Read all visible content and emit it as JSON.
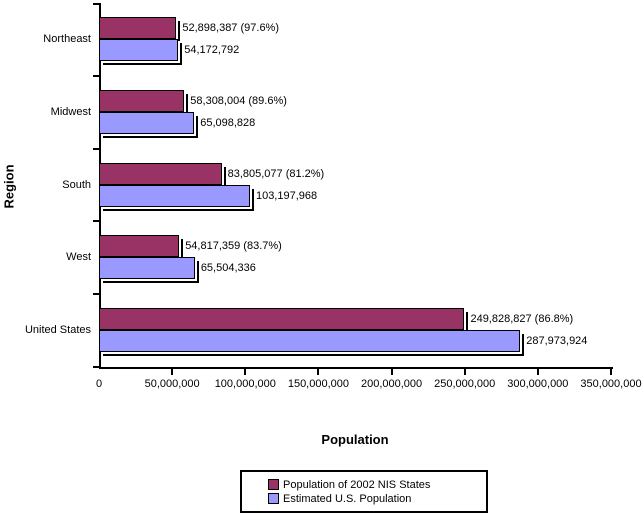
{
  "chart_data": {
    "type": "bar",
    "orientation": "horizontal",
    "title": "",
    "xlabel": "Population",
    "ylabel": "Region",
    "xlim": [
      0,
      350000000
    ],
    "grid": false,
    "legend_position": "bottom",
    "categories": [
      "Northeast",
      "Midwest",
      "South",
      "West",
      "United States"
    ],
    "x_ticks": [
      "0",
      "50,000,000",
      "100,000,000",
      "150,000,000",
      "200,000,000",
      "250,000,000",
      "300,000,000",
      "350,000,000"
    ],
    "series": [
      {
        "name": "Population of 2002 NIS States",
        "color": "#993366",
        "values": [
          52898387,
          58308004,
          83805077,
          54817359,
          249828827
        ],
        "labels": [
          "52,898,387 (97.6%)",
          "58,308,004 (89.6%)",
          "83,805,077 (81.2%)",
          "54,817,359 (83.7%)",
          "249,828,827 (86.8%)"
        ]
      },
      {
        "name": "Estimated U.S. Population",
        "color": "#9999FF",
        "values": [
          54172792,
          65098828,
          103197968,
          65504336,
          287973924
        ],
        "labels": [
          "54,172,792",
          "65,098,828",
          "103,197,968",
          "65,504,336",
          "287,973,924"
        ]
      }
    ]
  }
}
